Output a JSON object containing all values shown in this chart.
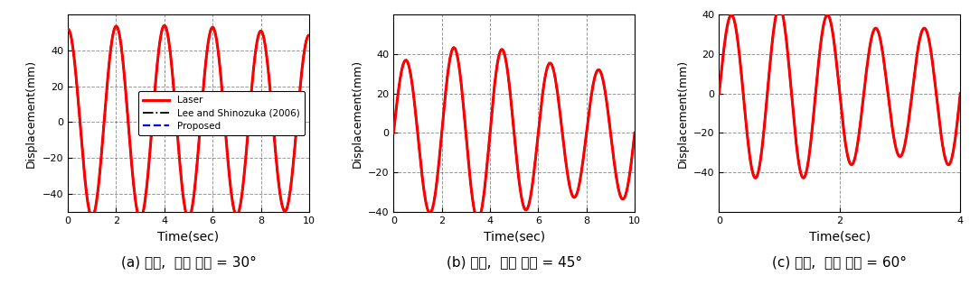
{
  "subplots": [
    {
      "label": "(a) 수직,  수평 각도 = 30°",
      "xlim": [
        0,
        10
      ],
      "ylim": [
        -50,
        60
      ],
      "yticks": [
        -40,
        -20,
        0,
        20,
        40
      ],
      "xticks": [
        0,
        2,
        4,
        6,
        8,
        10
      ],
      "show_legend": true,
      "xmax": 10,
      "freq_hz": 0.5,
      "amp_base": 50,
      "amp_var_amp": 4,
      "amp_var_freq": 0.048,
      "amp_var_phase": 0.5,
      "signal_phase": 1.57
    },
    {
      "label": "(b) 수직,  수평 각도 = 45°",
      "xlim": [
        0,
        10
      ],
      "ylim": [
        -40,
        60
      ],
      "yticks": [
        -40,
        -20,
        0,
        20,
        40
      ],
      "xticks": [
        0,
        2,
        4,
        6,
        8,
        10
      ],
      "show_legend": false,
      "xmax": 10,
      "freq_hz": 0.5,
      "amp_base": 38,
      "amp_var_amp": 6,
      "amp_var_freq": 0.1,
      "amp_var_phase": -0.5,
      "signal_phase": 0.0
    },
    {
      "label": "(c) 수직,  수평 각도 = 60°",
      "xlim": [
        0,
        4
      ],
      "ylim": [
        -60,
        40
      ],
      "yticks": [
        -40,
        -20,
        0,
        20,
        40
      ],
      "xticks": [
        0,
        2,
        4
      ],
      "show_legend": false,
      "xmax": 4,
      "freq_hz": 1.25,
      "amp_base": 38,
      "amp_var_amp": 6,
      "amp_var_freq": 0.25,
      "amp_var_phase": 0.0,
      "signal_phase": 0.0
    }
  ],
  "laser_color": "#ff0000",
  "lee_color": "#000000",
  "proposed_color": "#0000ff",
  "laser_lw": 2.2,
  "lee_lw": 1.3,
  "proposed_lw": 1.6,
  "ylabel": "Displacement(mm)",
  "xlabel": "Time(sec)",
  "legend_labels": [
    "Laser",
    "Lee and Shinozuka (2006)",
    "Proposed"
  ],
  "grid_color": "#000000",
  "grid_alpha": 0.4,
  "grid_linestyle": "--",
  "bg_color": "#ffffff",
  "font_size_label": 9,
  "font_size_tick": 8,
  "font_size_caption": 11
}
